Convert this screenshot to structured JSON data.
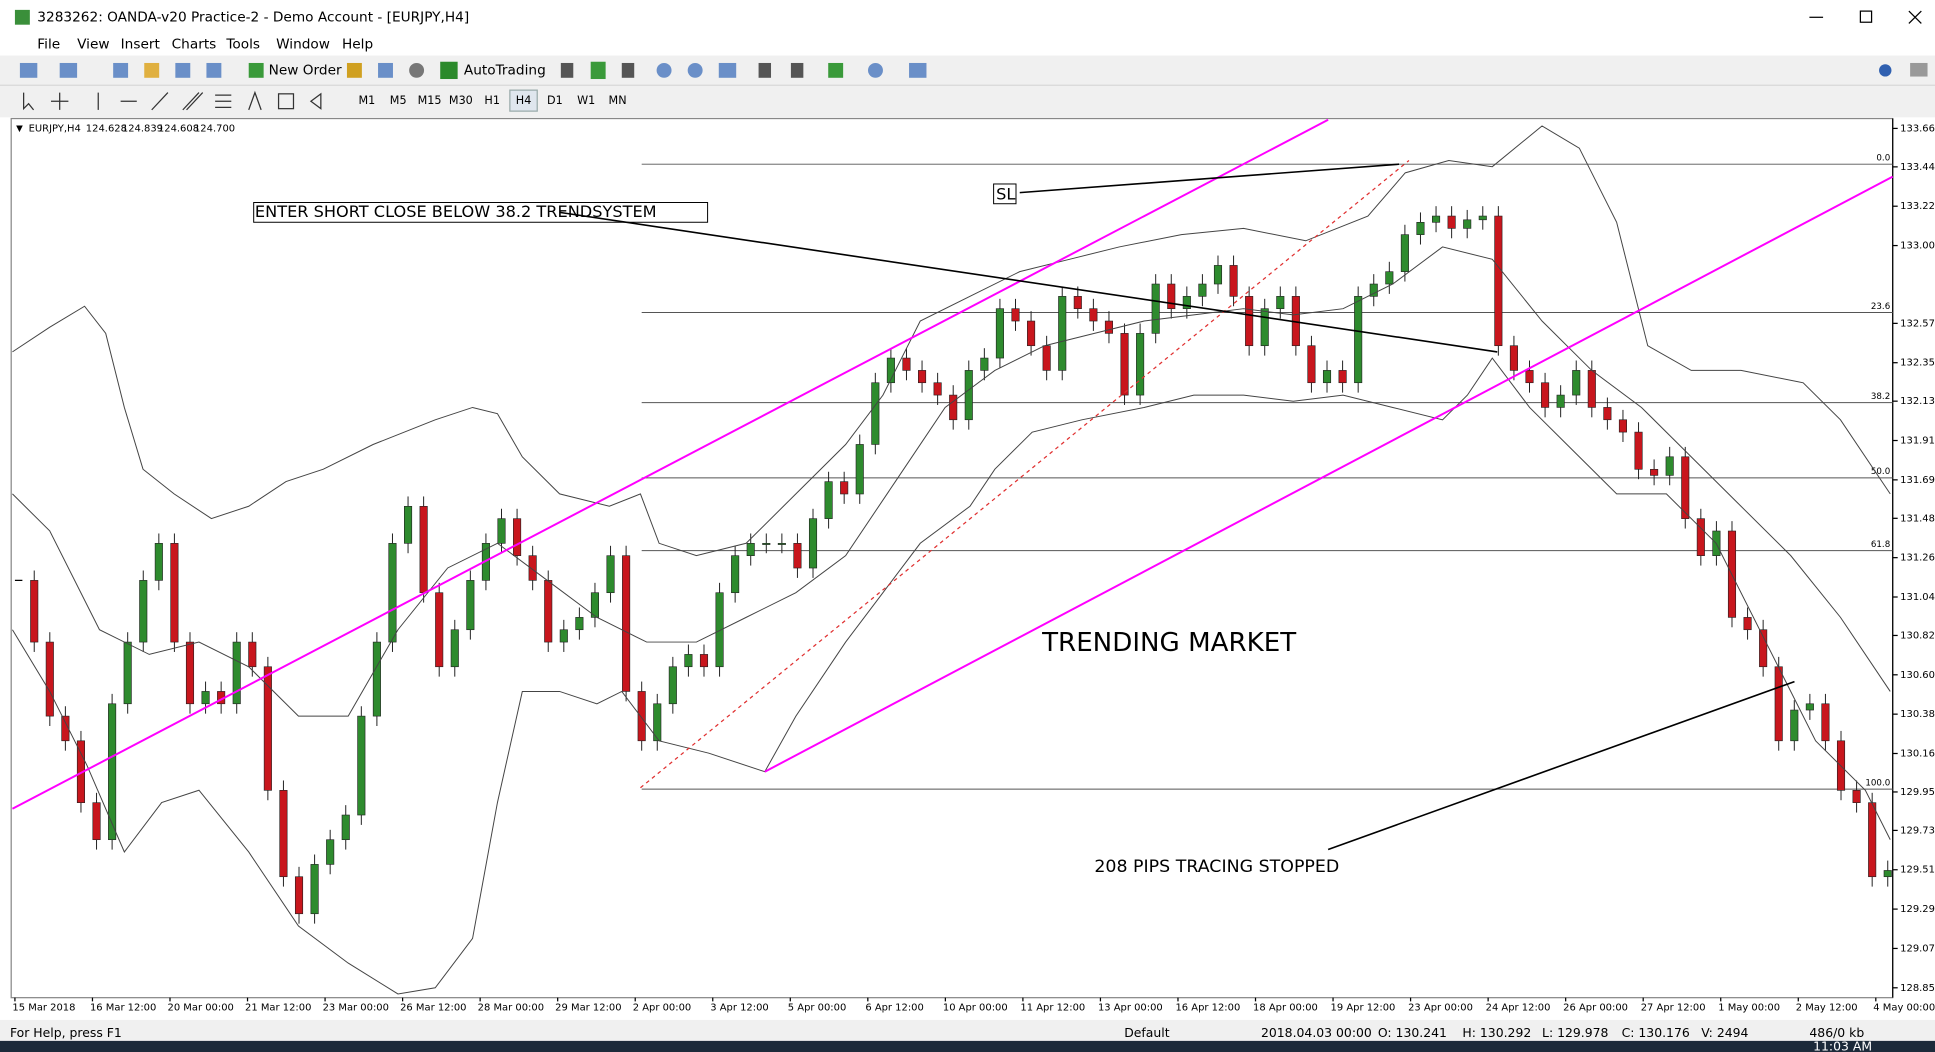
{
  "window": {
    "title": "3283262: OANDA-v20 Practice-2 - Demo Account - [EURJPY,H4]"
  },
  "menu": [
    "File",
    "View",
    "Insert",
    "Charts",
    "Tools",
    "Window",
    "Help"
  ],
  "toolbar": {
    "new_order": "New Order",
    "autotrading": "AutoTrading"
  },
  "timeframes": [
    "M1",
    "M5",
    "M15",
    "M30",
    "H1",
    "H4",
    "D1",
    "W1",
    "MN"
  ],
  "chart": {
    "info_symbol": "EURJPY,H4",
    "info_prices": [
      "124.628",
      "124.839",
      "124.608",
      "124.700"
    ],
    "price_axis": [
      {
        "value": 133.66,
        "label": "133.660"
      },
      {
        "value": 133.445,
        "label": "133.445"
      },
      {
        "value": 133.225,
        "label": "133.225"
      },
      {
        "value": 133.005,
        "label": "133.005"
      },
      {
        "value": 132.57,
        "label": "132.570"
      },
      {
        "value": 132.35,
        "label": "132.350"
      },
      {
        "value": 132.135,
        "label": "132.135"
      },
      {
        "value": 131.915,
        "label": "131.915"
      },
      {
        "value": 131.695,
        "label": "131.695"
      },
      {
        "value": 131.48,
        "label": "131.480"
      },
      {
        "value": 131.26,
        "label": "131.260"
      },
      {
        "value": 131.04,
        "label": "131.040"
      },
      {
        "value": 130.825,
        "label": "130.825"
      },
      {
        "value": 130.605,
        "label": "130.605"
      },
      {
        "value": 130.385,
        "label": "130.385"
      },
      {
        "value": 130.165,
        "label": "130.165"
      },
      {
        "value": 129.95,
        "label": "129.950"
      },
      {
        "value": 129.735,
        "label": "129.735"
      },
      {
        "value": 129.515,
        "label": "129.515"
      },
      {
        "value": 129.295,
        "label": "129.295"
      },
      {
        "value": 129.075,
        "label": "129.075"
      },
      {
        "value": 128.855,
        "label": "128.855"
      }
    ],
    "time_axis": [
      "15 Mar 2018",
      "16 Mar 12:00",
      "20 Mar 00:00",
      "21 Mar 12:00",
      "23 Mar 00:00",
      "26 Mar 12:00",
      "28 Mar 00:00",
      "29 Mar 12:00",
      "2 Apr 00:00",
      "3 Apr 12:00",
      "5 Apr 00:00",
      "6 Apr 12:00",
      "10 Apr 00:00",
      "11 Apr 12:00",
      "13 Apr 00:00",
      "16 Apr 12:00",
      "18 Apr 00:00",
      "19 Apr 12:00",
      "23 Apr 00:00",
      "24 Apr 12:00",
      "26 Apr 00:00",
      "27 Apr 12:00",
      "1 May 00:00",
      "2 May 12:00",
      "4 May 00:00"
    ],
    "fib_levels": [
      {
        "label": "0.0",
        "price": 133.46
      },
      {
        "label": "23.6",
        "price": 132.631
      },
      {
        "label": "38.2",
        "price": 132.127
      },
      {
        "label": "50.0",
        "price": 131.706
      },
      {
        "label": "61.8",
        "price": 131.299
      },
      {
        "label": "100.0",
        "price": 129.966
      }
    ],
    "closes": [
      131.133,
      130.788,
      130.374,
      130.236,
      129.89,
      129.683,
      130.443,
      130.788,
      131.133,
      131.34,
      130.788,
      130.443,
      130.512,
      130.443,
      130.788,
      130.65,
      129.959,
      129.476,
      129.269,
      129.545,
      129.683,
      129.821,
      130.374,
      130.788,
      131.34,
      131.547,
      131.064,
      130.65,
      130.857,
      131.133,
      131.34,
      131.478,
      131.271,
      131.133,
      130.788,
      130.857,
      130.926,
      131.064,
      131.271,
      130.512,
      130.236,
      130.443,
      130.65,
      130.719,
      130.65,
      131.064,
      131.271,
      131.34,
      131.34,
      131.34,
      131.202,
      131.478,
      131.685,
      131.616,
      131.893,
      132.238,
      132.376,
      132.307,
      132.238,
      132.169,
      132.031,
      132.307,
      132.376,
      132.652,
      132.583,
      132.445,
      132.307,
      132.721,
      132.652,
      132.583,
      132.514,
      132.169,
      132.514,
      132.79,
      132.652,
      132.721,
      132.79,
      132.894,
      132.721,
      132.445,
      132.652,
      132.721,
      132.445,
      132.238,
      132.307,
      132.238,
      132.721,
      132.79,
      132.859,
      133.066,
      133.135,
      133.17,
      133.101,
      133.149,
      133.17,
      132.445,
      132.307,
      132.238,
      132.1,
      132.169,
      132.307,
      132.1,
      132.031,
      131.962,
      131.754,
      131.72,
      131.824,
      131.478,
      131.271,
      131.409,
      130.926,
      130.857,
      130.65,
      130.236,
      130.408,
      130.443,
      130.236,
      129.959,
      129.89,
      129.476,
      129.511
    ],
    "annotations": {
      "entry": "ENTER SHORT CLOSE BELOW 38.2 TRENDSYSTEM",
      "sl": "SL",
      "trend": "TRENDING MARKET",
      "pips": "208 PIPS TRACING STOPPED"
    }
  },
  "status": {
    "help": "For Help, press F1",
    "profile": "Default",
    "time": "2018.04.03 00:00",
    "open": "O: 130.241",
    "high": "H: 130.292",
    "low": "L: 129.978",
    "close": "C: 130.176",
    "volume": "V: 2494",
    "traffic": "486/0 kb"
  },
  "taskbar": {
    "time": "11:03 AM"
  }
}
